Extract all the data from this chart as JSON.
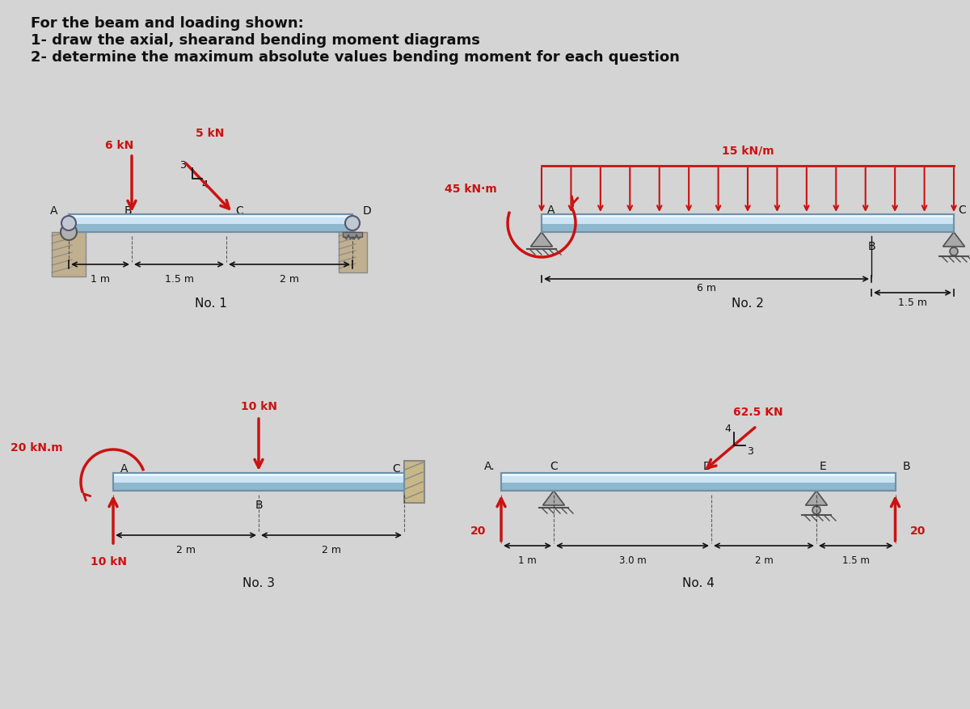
{
  "bg_color": "#d4d4d4",
  "title_lines": [
    "For the beam and loading shown:",
    "1- draw the axial, shearand bending moment diagrams",
    "2- determine the maximum absolute values bending moment for each question"
  ],
  "beam_color_light": "#b8d4e8",
  "beam_color_top": "#e8f4ff",
  "beam_edge": "#7090a8",
  "arrow_color": "#cc1111",
  "text_color": "#111111",
  "support_gray": "#909090",
  "support_dark": "#505050",
  "wall_color": "#d4c4a0",
  "wall_hatch": "#b0a080"
}
